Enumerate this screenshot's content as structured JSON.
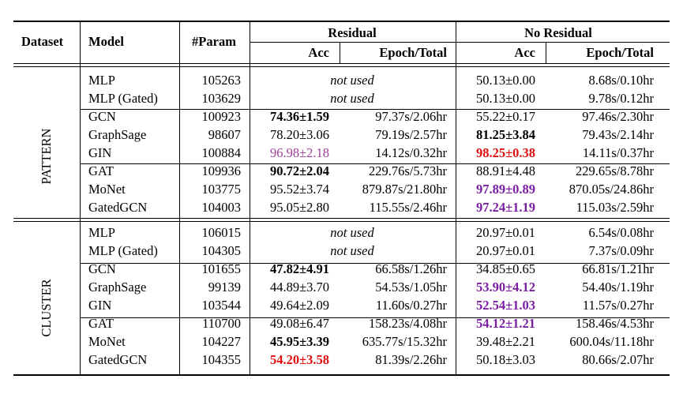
{
  "colors": {
    "red": "#e01010",
    "purple": "#7b1fa2",
    "gin_purple": "#a0409a"
  },
  "header": {
    "dataset": "Dataset",
    "model": "Model",
    "param": "#Param",
    "residual": "Residual",
    "no_residual": "No Residual",
    "acc": "Acc",
    "epoch_total": "Epoch/Total"
  },
  "groups": [
    {
      "name": "PATTERN",
      "rows": [
        {
          "model": "MLP",
          "param": "105263",
          "res_acc": "",
          "res_epoch": "",
          "not_used": "not used",
          "nores_acc": "50.13±0.00",
          "nores_epoch": "8.68s/0.10hr"
        },
        {
          "model": "MLP (Gated)",
          "param": "103629",
          "res_acc": "",
          "res_epoch": "",
          "not_used": "not used",
          "nores_acc": "50.13±0.00",
          "nores_epoch": "9.78s/0.12hr"
        },
        {
          "model": "GCN",
          "param": "100923",
          "res_acc": "74.36±1.59",
          "res_acc_style": "bold",
          "res_epoch": "97.37s/2.06hr",
          "nores_acc": "55.22±0.17",
          "nores_epoch": "97.46s/2.30hr"
        },
        {
          "model": "GraphSage",
          "param": "98607",
          "res_acc": "78.20±3.06",
          "res_epoch": "79.19s/2.57hr",
          "nores_acc": "81.25±3.84",
          "nores_acc_style": "bold",
          "nores_epoch": "79.43s/2.14hr"
        },
        {
          "model": "GIN",
          "param": "100884",
          "res_acc": "96.98±2.18",
          "res_acc_style": "gin",
          "res_epoch": "14.12s/0.32hr",
          "nores_acc": "98.25±0.38",
          "nores_acc_style": "red",
          "nores_epoch": "14.11s/0.37hr"
        },
        {
          "model": "GAT",
          "param": "109936",
          "res_acc": "90.72±2.04",
          "res_acc_style": "bold",
          "res_epoch": "229.76s/5.73hr",
          "nores_acc": "88.91±4.48",
          "nores_epoch": "229.65s/8.78hr"
        },
        {
          "model": "MoNet",
          "param": "103775",
          "res_acc": "95.52±3.74",
          "res_epoch": "879.87s/21.80hr",
          "nores_acc": "97.89±0.89",
          "nores_acc_style": "purple",
          "nores_epoch": "870.05s/24.86hr"
        },
        {
          "model": "GatedGCN",
          "param": "104003",
          "res_acc": "95.05±2.80",
          "res_epoch": "115.55s/2.46hr",
          "nores_acc": "97.24±1.19",
          "nores_acc_style": "purple",
          "nores_epoch": "115.03s/2.59hr"
        }
      ]
    },
    {
      "name": "CLUSTER",
      "rows": [
        {
          "model": "MLP",
          "param": "106015",
          "res_acc": "",
          "res_epoch": "",
          "not_used": "not used",
          "nores_acc": "20.97±0.01",
          "nores_epoch": "6.54s/0.08hr"
        },
        {
          "model": "MLP (Gated)",
          "param": "104305",
          "res_acc": "",
          "res_epoch": "",
          "not_used": "not used",
          "nores_acc": "20.97±0.01",
          "nores_epoch": "7.37s/0.09hr"
        },
        {
          "model": "GCN",
          "param": "101655",
          "res_acc": "47.82±4.91",
          "res_acc_style": "bold",
          "res_epoch": "66.58s/1.26hr",
          "nores_acc": "34.85±0.65",
          "nores_epoch": "66.81s/1.21hr"
        },
        {
          "model": "GraphSage",
          "param": "99139",
          "res_acc": "44.89±3.70",
          "res_epoch": "54.53s/1.05hr",
          "nores_acc": "53.90±4.12",
          "nores_acc_style": "purple",
          "nores_epoch": "54.40s/1.19hr"
        },
        {
          "model": "GIN",
          "param": "103544",
          "res_acc": "49.64±2.09",
          "res_epoch": "11.60s/0.27hr",
          "nores_acc": "52.54±1.03",
          "nores_acc_style": "purple",
          "nores_epoch": "11.57s/0.27hr"
        },
        {
          "model": "GAT",
          "param": "110700",
          "res_acc": "49.08±6.47",
          "res_epoch": "158.23s/4.08hr",
          "nores_acc": "54.12±1.21",
          "nores_acc_style": "purple",
          "nores_epoch": "158.46s/4.53hr"
        },
        {
          "model": "MoNet",
          "param": "104227",
          "res_acc": "45.95±3.39",
          "res_acc_style": "bold",
          "res_epoch": "635.77s/15.32hr",
          "nores_acc": "39.48±2.21",
          "nores_epoch": "600.04s/11.18hr"
        },
        {
          "model": "GatedGCN",
          "param": "104355",
          "res_acc": "54.20±3.58",
          "res_acc_style": "red",
          "res_epoch": "81.39s/2.26hr",
          "nores_acc": "50.18±3.03",
          "nores_epoch": "80.66s/2.07hr"
        }
      ]
    }
  ]
}
